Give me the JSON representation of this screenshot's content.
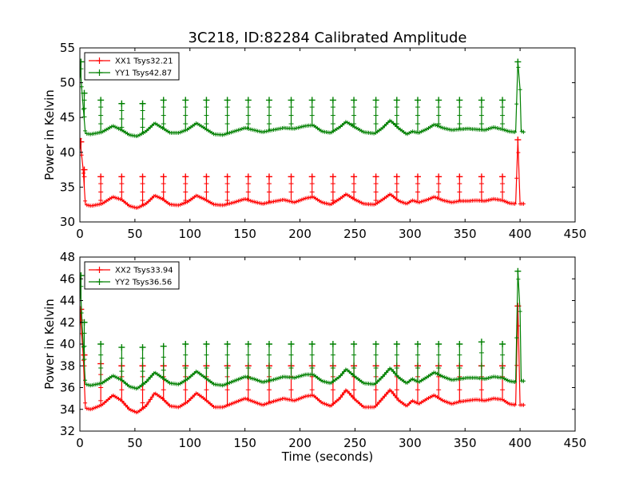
{
  "title": "3C218, ID:82284 Calibrated Amplitude",
  "xlabel": "Time (seconds)",
  "chart_data": [
    {
      "type": "line",
      "xlabel": "",
      "ylabel": "Power in Kelvin",
      "xlim": [
        0,
        450
      ],
      "ylim": [
        30,
        55
      ],
      "xticks": [
        "0",
        "50",
        "100",
        "150",
        "200",
        "250",
        "300",
        "350",
        "400",
        "450"
      ],
      "yticks": [
        "30",
        "35",
        "40",
        "45",
        "50",
        "55"
      ],
      "legend_position": "upper-left",
      "spikes_x": [
        1,
        4,
        19,
        38,
        57,
        76,
        96,
        115,
        134,
        153,
        172,
        192,
        211,
        230,
        249,
        269,
        288,
        307,
        326,
        345,
        365,
        384,
        398
      ],
      "series": [
        {
          "name": "XX1 Tsys32.21",
          "color": "#ff0000",
          "baseline": [
            [
              0,
              42.0
            ],
            [
              3,
              37.5
            ],
            [
              5,
              32.5
            ],
            [
              10,
              32.3
            ],
            [
              20,
              32.6
            ],
            [
              30,
              33.6
            ],
            [
              38,
              33.2
            ],
            [
              45,
              32.3
            ],
            [
              52,
              32.0
            ],
            [
              60,
              32.6
            ],
            [
              68,
              33.8
            ],
            [
              75,
              33.3
            ],
            [
              82,
              32.5
            ],
            [
              90,
              32.4
            ],
            [
              98,
              32.9
            ],
            [
              106,
              33.8
            ],
            [
              114,
              33.2
            ],
            [
              122,
              32.5
            ],
            [
              130,
              32.4
            ],
            [
              140,
              32.8
            ],
            [
              150,
              33.3
            ],
            [
              158,
              32.9
            ],
            [
              166,
              32.6
            ],
            [
              175,
              32.9
            ],
            [
              185,
              33.2
            ],
            [
              195,
              32.8
            ],
            [
              205,
              33.4
            ],
            [
              212,
              33.6
            ],
            [
              220,
              32.8
            ],
            [
              228,
              32.5
            ],
            [
              236,
              33.3
            ],
            [
              242,
              34.0
            ],
            [
              250,
              33.2
            ],
            [
              258,
              32.6
            ],
            [
              268,
              32.5
            ],
            [
              275,
              33.2
            ],
            [
              282,
              34.0
            ],
            [
              290,
              33.0
            ],
            [
              297,
              32.6
            ],
            [
              302,
              33.1
            ],
            [
              308,
              32.8
            ],
            [
              316,
              33.2
            ],
            [
              322,
              33.6
            ],
            [
              330,
              33.1
            ],
            [
              338,
              32.8
            ],
            [
              345,
              33.0
            ],
            [
              352,
              33.0
            ],
            [
              360,
              33.1
            ],
            [
              368,
              33.0
            ],
            [
              376,
              33.3
            ],
            [
              384,
              33.1
            ],
            [
              390,
              32.7
            ],
            [
              396,
              32.6
            ],
            [
              398,
              41.8
            ],
            [
              400,
              32.6
            ],
            [
              404,
              32.6
            ]
          ],
          "spike_tops": [
            41.5,
            37.5,
            36.5,
            36.5,
            36.5,
            36.5,
            36.5,
            36.5,
            36.5,
            36.5,
            36.5,
            36.5,
            36.5,
            36.5,
            36.5,
            36.5,
            36.5,
            36.5,
            36.5,
            36.5,
            36.5,
            36.5,
            41.8
          ]
        },
        {
          "name": "YY1 Tsys42.87",
          "color": "#008000",
          "baseline": [
            [
              0,
              53.0
            ],
            [
              2,
              48.5
            ],
            [
              5,
              42.7
            ],
            [
              10,
              42.6
            ],
            [
              20,
              42.9
            ],
            [
              30,
              43.8
            ],
            [
              38,
              43.2
            ],
            [
              45,
              42.5
            ],
            [
              52,
              42.3
            ],
            [
              60,
              43.0
            ],
            [
              68,
              44.2
            ],
            [
              75,
              43.5
            ],
            [
              82,
              42.8
            ],
            [
              90,
              42.8
            ],
            [
              98,
              43.3
            ],
            [
              106,
              44.2
            ],
            [
              114,
              43.4
            ],
            [
              122,
              42.6
            ],
            [
              130,
              42.5
            ],
            [
              140,
              43.0
            ],
            [
              150,
              43.5
            ],
            [
              158,
              43.2
            ],
            [
              166,
              42.9
            ],
            [
              175,
              43.2
            ],
            [
              185,
              43.5
            ],
            [
              195,
              43.4
            ],
            [
              205,
              43.8
            ],
            [
              212,
              43.9
            ],
            [
              220,
              43.0
            ],
            [
              228,
              42.8
            ],
            [
              236,
              43.6
            ],
            [
              242,
              44.4
            ],
            [
              250,
              43.6
            ],
            [
              258,
              42.9
            ],
            [
              268,
              42.7
            ],
            [
              275,
              43.5
            ],
            [
              282,
              44.6
            ],
            [
              290,
              43.4
            ],
            [
              297,
              42.6
            ],
            [
              302,
              43.0
            ],
            [
              308,
              42.8
            ],
            [
              316,
              43.4
            ],
            [
              322,
              44.0
            ],
            [
              330,
              43.5
            ],
            [
              338,
              43.2
            ],
            [
              345,
              43.3
            ],
            [
              352,
              43.4
            ],
            [
              360,
              43.3
            ],
            [
              368,
              43.2
            ],
            [
              376,
              43.6
            ],
            [
              384,
              43.3
            ],
            [
              390,
              43.0
            ],
            [
              396,
              42.9
            ],
            [
              398,
              53.0
            ],
            [
              400,
              49.0
            ],
            [
              401,
              43.0
            ],
            [
              404,
              42.9
            ]
          ],
          "spike_tops": [
            53.0,
            48.5,
            47.5,
            47.0,
            47.0,
            47.5,
            47.5,
            47.5,
            47.5,
            47.5,
            47.5,
            47.5,
            47.5,
            47.5,
            47.5,
            47.5,
            47.5,
            47.5,
            47.5,
            47.5,
            47.5,
            47.5,
            53.0
          ]
        }
      ]
    },
    {
      "type": "line",
      "xlabel": "Time (seconds)",
      "ylabel": "Power in Kelvin",
      "xlim": [
        0,
        450
      ],
      "ylim": [
        32,
        48
      ],
      "xticks": [
        "0",
        "50",
        "100",
        "150",
        "200",
        "250",
        "300",
        "350",
        "400",
        "450"
      ],
      "yticks": [
        "32",
        "34",
        "36",
        "38",
        "40",
        "42",
        "44",
        "46",
        "48"
      ],
      "legend_position": "upper-left",
      "spikes_x": [
        1,
        4,
        19,
        38,
        57,
        76,
        96,
        115,
        134,
        153,
        172,
        192,
        211,
        230,
        249,
        269,
        288,
        307,
        326,
        345,
        365,
        384,
        398
      ],
      "series": [
        {
          "name": "XX2 Tsys33.94",
          "color": "#ff0000",
          "baseline": [
            [
              0,
              43.2
            ],
            [
              3,
              39.0
            ],
            [
              5,
              34.1
            ],
            [
              10,
              34.0
            ],
            [
              20,
              34.4
            ],
            [
              30,
              35.3
            ],
            [
              38,
              34.8
            ],
            [
              45,
              34.0
            ],
            [
              52,
              33.7
            ],
            [
              60,
              34.3
            ],
            [
              68,
              35.5
            ],
            [
              75,
              35.0
            ],
            [
              82,
              34.3
            ],
            [
              90,
              34.2
            ],
            [
              98,
              34.7
            ],
            [
              106,
              35.5
            ],
            [
              114,
              34.9
            ],
            [
              122,
              34.2
            ],
            [
              130,
              34.2
            ],
            [
              140,
              34.6
            ],
            [
              150,
              35.0
            ],
            [
              158,
              34.7
            ],
            [
              166,
              34.4
            ],
            [
              175,
              34.7
            ],
            [
              185,
              35.0
            ],
            [
              195,
              34.8
            ],
            [
              205,
              35.2
            ],
            [
              212,
              35.3
            ],
            [
              220,
              34.6
            ],
            [
              228,
              34.3
            ],
            [
              236,
              35.0
            ],
            [
              242,
              35.8
            ],
            [
              250,
              34.9
            ],
            [
              258,
              34.2
            ],
            [
              268,
              34.2
            ],
            [
              275,
              35.0
            ],
            [
              282,
              35.8
            ],
            [
              290,
              34.8
            ],
            [
              297,
              34.3
            ],
            [
              302,
              34.8
            ],
            [
              308,
              34.5
            ],
            [
              316,
              35.0
            ],
            [
              322,
              35.3
            ],
            [
              330,
              34.8
            ],
            [
              338,
              34.5
            ],
            [
              345,
              34.7
            ],
            [
              352,
              34.8
            ],
            [
              360,
              34.9
            ],
            [
              368,
              34.8
            ],
            [
              376,
              35.0
            ],
            [
              384,
              34.9
            ],
            [
              390,
              34.5
            ],
            [
              396,
              34.4
            ],
            [
              398,
              43.5
            ],
            [
              400,
              34.4
            ],
            [
              404,
              34.4
            ]
          ],
          "spike_tops": [
            43.2,
            39.0,
            38.2,
            38.0,
            38.0,
            38.0,
            38.0,
            38.0,
            38.0,
            38.0,
            38.0,
            38.0,
            38.0,
            38.0,
            38.0,
            38.0,
            38.0,
            38.0,
            38.0,
            38.0,
            38.0,
            38.0,
            43.5
          ]
        },
        {
          "name": "YY2 Tsys36.56",
          "color": "#008000",
          "baseline": [
            [
              0,
              46.3
            ],
            [
              2,
              42.0
            ],
            [
              5,
              36.3
            ],
            [
              10,
              36.2
            ],
            [
              20,
              36.4
            ],
            [
              30,
              37.1
            ],
            [
              38,
              36.7
            ],
            [
              45,
              36.1
            ],
            [
              52,
              35.9
            ],
            [
              60,
              36.5
            ],
            [
              68,
              37.4
            ],
            [
              75,
              36.9
            ],
            [
              82,
              36.4
            ],
            [
              90,
              36.3
            ],
            [
              98,
              36.8
            ],
            [
              106,
              37.5
            ],
            [
              114,
              36.9
            ],
            [
              122,
              36.3
            ],
            [
              130,
              36.2
            ],
            [
              140,
              36.6
            ],
            [
              150,
              37.0
            ],
            [
              158,
              36.8
            ],
            [
              166,
              36.5
            ],
            [
              175,
              36.7
            ],
            [
              185,
              37.0
            ],
            [
              195,
              36.9
            ],
            [
              205,
              37.2
            ],
            [
              212,
              37.2
            ],
            [
              220,
              36.6
            ],
            [
              228,
              36.4
            ],
            [
              236,
              37.0
            ],
            [
              242,
              37.7
            ],
            [
              250,
              37.0
            ],
            [
              258,
              36.4
            ],
            [
              268,
              36.3
            ],
            [
              275,
              37.0
            ],
            [
              282,
              37.8
            ],
            [
              290,
              36.9
            ],
            [
              297,
              36.4
            ],
            [
              302,
              36.8
            ],
            [
              308,
              36.5
            ],
            [
              316,
              37.0
            ],
            [
              322,
              37.4
            ],
            [
              330,
              37.0
            ],
            [
              338,
              36.7
            ],
            [
              345,
              36.8
            ],
            [
              352,
              36.9
            ],
            [
              360,
              36.9
            ],
            [
              368,
              36.8
            ],
            [
              376,
              37.0
            ],
            [
              384,
              36.9
            ],
            [
              390,
              36.6
            ],
            [
              396,
              36.5
            ],
            [
              398,
              46.7
            ],
            [
              400,
              43.0
            ],
            [
              401,
              36.6
            ],
            [
              404,
              36.6
            ]
          ],
          "spike_tops": [
            46.3,
            42.0,
            40.0,
            39.7,
            39.7,
            39.8,
            40.0,
            40.0,
            40.0,
            40.0,
            40.0,
            40.0,
            40.0,
            40.0,
            40.0,
            40.0,
            40.0,
            40.0,
            40.0,
            40.0,
            40.2,
            40.0,
            46.7
          ]
        }
      ]
    }
  ]
}
